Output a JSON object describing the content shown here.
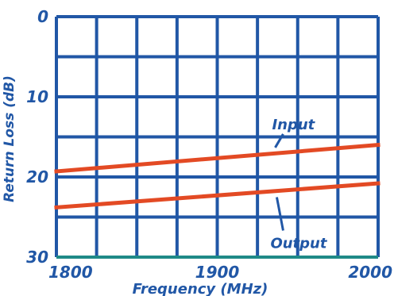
{
  "chart_data": {
    "type": "line",
    "title": "",
    "xlabel": "Frequency (MHz)",
    "ylabel": "Return Loss (dB)",
    "xlim": [
      1800,
      2000
    ],
    "ylim": [
      0,
      30
    ],
    "y_inverted": true,
    "x_ticks": [
      "1800",
      "1900",
      "2000"
    ],
    "y_ticks": [
      "0",
      "10",
      "20",
      "30"
    ],
    "grid": true,
    "grid_x_divisions": 8,
    "grid_y_divisions": 6,
    "series": [
      {
        "name": "Input",
        "x": [
          1800,
          2000
        ],
        "y": [
          19.3,
          16.0
        ],
        "color": "#e34a24"
      },
      {
        "name": "Output",
        "x": [
          1800,
          2000
        ],
        "y": [
          23.8,
          20.8
        ],
        "color": "#e34a24"
      }
    ],
    "annotations": [
      {
        "text": "Input",
        "series": "Input"
      },
      {
        "text": "Output",
        "series": "Output"
      }
    ],
    "colors": {
      "grid": "#2157a6",
      "text": "#2157a6",
      "bottom_axis": "#1f8a87",
      "background": "#ffffff"
    }
  }
}
